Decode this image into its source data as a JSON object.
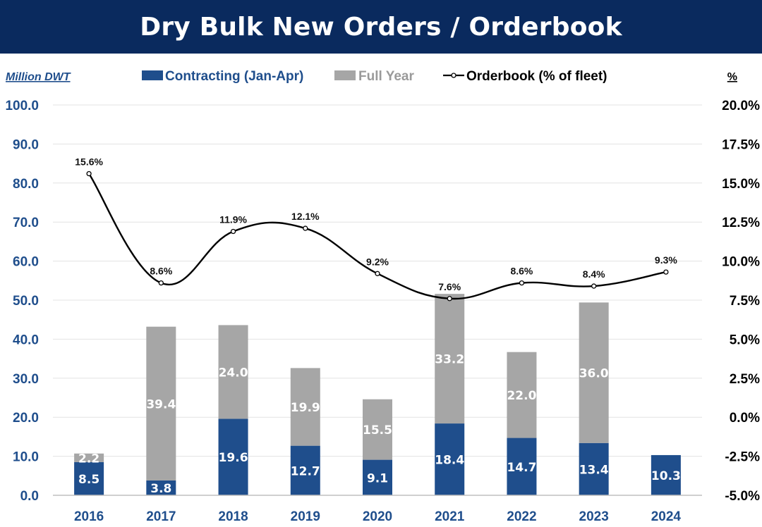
{
  "title": "Dry Bulk New Orders / Orderbook",
  "chart_data": {
    "type": "bar",
    "stacked": true,
    "title": "Dry Bulk New Orders / Orderbook",
    "ylabel": "Million DWT",
    "y2label": "%",
    "categories": [
      "2016",
      "2017",
      "2018",
      "2019",
      "2020",
      "2021",
      "2022",
      "2023",
      "2024"
    ],
    "ylim": [
      0,
      100
    ],
    "yticks": [
      0,
      10,
      20,
      30,
      40,
      50,
      60,
      70,
      80,
      90,
      100
    ],
    "ytick_labels": [
      "0.0",
      "10.0",
      "20.0",
      "30.0",
      "40.0",
      "50.0",
      "60.0",
      "70.0",
      "80.0",
      "90.0",
      "100.0"
    ],
    "y2lim": [
      -5,
      20
    ],
    "y2ticks": [
      -5,
      -2.5,
      0,
      2.5,
      5,
      7.5,
      10,
      12.5,
      15,
      17.5,
      20
    ],
    "y2tick_labels": [
      "-5.0%",
      "-2.5%",
      "0.0%",
      "2.5%",
      "5.0%",
      "7.5%",
      "10.0%",
      "12.5%",
      "15.0%",
      "17.5%",
      "20.0%"
    ],
    "legend_position": "top",
    "series": [
      {
        "name": "Contracting (Jan-Apr)",
        "kind": "bar",
        "color": "#1f4e8c",
        "label_color": "#ffffff",
        "values": [
          8.5,
          3.8,
          19.6,
          12.7,
          9.1,
          18.4,
          14.7,
          13.4,
          10.3
        ],
        "labels": [
          "8.5",
          "3.8",
          "19.6",
          "12.7",
          "9.1",
          "18.4",
          "14.7",
          "13.4",
          "10.3"
        ]
      },
      {
        "name": "Full Year",
        "kind": "bar",
        "color": "#a6a6a6",
        "label_color": "#ffffff",
        "values": [
          2.2,
          39.4,
          24.0,
          19.9,
          15.5,
          33.2,
          22.0,
          36.0,
          null
        ],
        "labels": [
          "2.2",
          "39.4",
          "24.0",
          "19.9",
          "15.5",
          "33.2",
          "22.0",
          "36.0",
          ""
        ]
      },
      {
        "name": "Orderbook (% of fleet)",
        "kind": "line",
        "axis": "right",
        "color": "#000000",
        "values": [
          15.6,
          8.6,
          11.9,
          12.1,
          9.2,
          7.6,
          8.6,
          8.4,
          9.3
        ],
        "labels": [
          "15.6%",
          "8.6%",
          "11.9%",
          "12.1%",
          "9.2%",
          "7.6%",
          "8.6%",
          "8.4%",
          "9.3%"
        ]
      }
    ],
    "colors": {
      "axis_left": "#1f4e8c",
      "axis_right": "#000000",
      "gridline": "#e3e3e3",
      "title_bg": "#0a2a5e"
    }
  }
}
